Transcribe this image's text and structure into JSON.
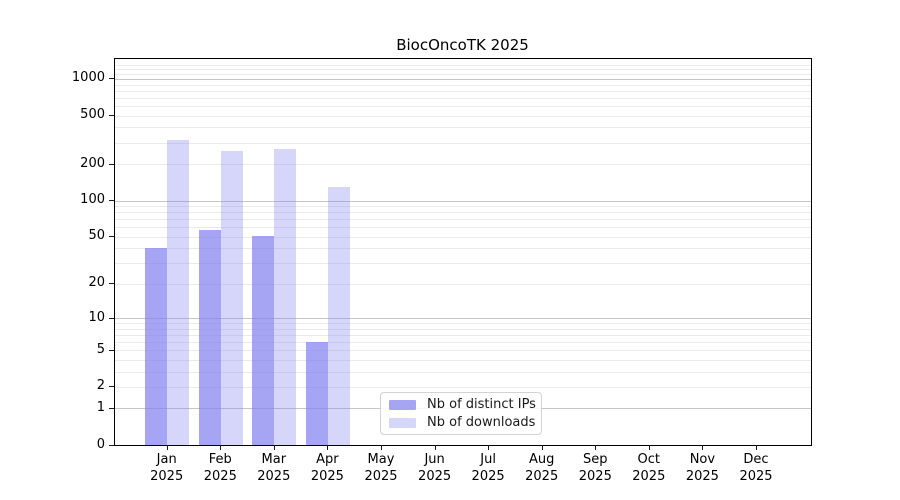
{
  "title": "BiocOncoTK 2025",
  "legend": {
    "position": "lower center-left inside plot",
    "items": [
      {
        "label": "Nb of distinct IPs",
        "color": "rgba(130,130,240,0.72)"
      },
      {
        "label": "Nb of downloads",
        "color": "rgba(130,130,240,0.33)"
      }
    ]
  },
  "chart_data": {
    "type": "bar",
    "title": "BiocOncoTK 2025",
    "categories": [
      "Jan 2025",
      "Feb 2025",
      "Mar 2025",
      "Apr 2025",
      "May 2025",
      "Jun 2025",
      "Jul 2025",
      "Aug 2025",
      "Sep 2025",
      "Oct 2025",
      "Nov 2025",
      "Dec 2025"
    ],
    "x_tick_lines": [
      {
        "month": "Jan",
        "year": "2025"
      },
      {
        "month": "Feb",
        "year": "2025"
      },
      {
        "month": "Mar",
        "year": "2025"
      },
      {
        "month": "Apr",
        "year": "2025"
      },
      {
        "month": "May",
        "year": "2025"
      },
      {
        "month": "Jun",
        "year": "2025"
      },
      {
        "month": "Jul",
        "year": "2025"
      },
      {
        "month": "Aug",
        "year": "2025"
      },
      {
        "month": "Sep",
        "year": "2025"
      },
      {
        "month": "Oct",
        "year": "2025"
      },
      {
        "month": "Nov",
        "year": "2025"
      },
      {
        "month": "Dec",
        "year": "2025"
      }
    ],
    "series": [
      {
        "name": "Nb of distinct IPs",
        "color": "rgba(130,130,240,0.72)",
        "values": [
          40,
          57,
          51,
          6,
          0,
          0,
          0,
          0,
          0,
          0,
          0,
          0
        ]
      },
      {
        "name": "Nb of downloads",
        "color": "rgba(130,130,240,0.33)",
        "values": [
          313,
          258,
          266,
          130,
          0,
          0,
          0,
          0,
          0,
          0,
          0,
          0
        ]
      }
    ],
    "y_ticks": [
      0,
      1,
      2,
      5,
      10,
      20,
      50,
      100,
      200,
      500,
      1000
    ],
    "y_scale": "log10(value+1)",
    "ylim": [
      0,
      1450
    ],
    "grid": "horizontal, minor light gray at 2-9 per decade, major darker gray at powers of 10",
    "xlabel": "",
    "ylabel": ""
  }
}
